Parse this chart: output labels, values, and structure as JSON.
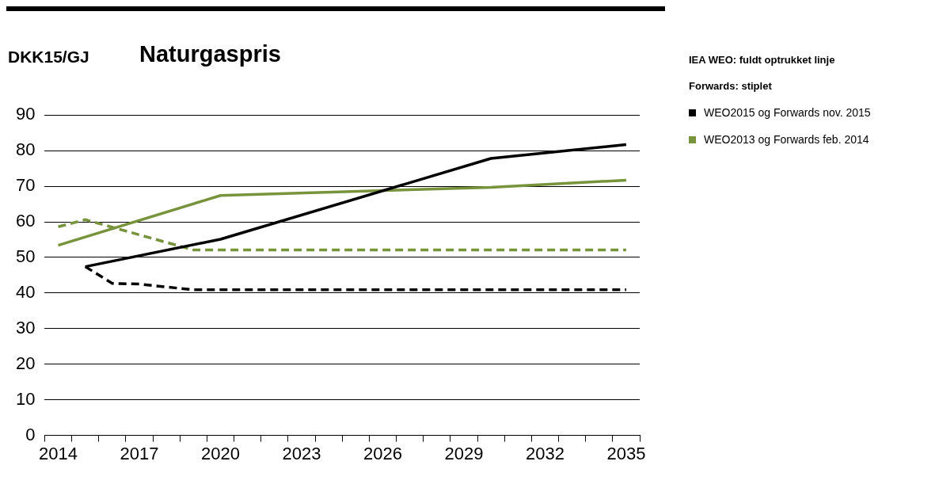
{
  "chart_data": {
    "type": "line",
    "title": "Naturgaspris",
    "ylabel": "DKK15/GJ",
    "categories": [
      "2014",
      null,
      null,
      "2017",
      null,
      null,
      "2020",
      null,
      null,
      "2023",
      null,
      null,
      "2026",
      null,
      null,
      "2029",
      null,
      null,
      "2032",
      null,
      null,
      "2035"
    ],
    "series": [
      {
        "name": "WEO2015 og Forwards nov. 2015",
        "color": "#000000",
        "line_style": "solid",
        "values": [
          null,
          47.4,
          null,
          null,
          null,
          null,
          55.1,
          null,
          null,
          null,
          null,
          null,
          null,
          null,
          null,
          null,
          77.8,
          null,
          null,
          null,
          null,
          81.7
        ]
      },
      {
        "color": "#000000",
        "line_style": "dashed",
        "values": [
          null,
          47.4,
          42.7,
          42.5,
          null,
          40.9,
          40.9,
          40.9,
          40.9,
          40.9,
          40.9,
          40.9,
          40.9,
          40.9,
          40.9,
          40.9,
          40.9,
          40.9,
          40.9,
          40.9,
          40.9,
          40.9
        ]
      },
      {
        "name": "WEO2013 og Forwards feb. 2014",
        "color": "#77933c",
        "line_style": "solid",
        "values": [
          53.4,
          null,
          null,
          null,
          null,
          null,
          67.4,
          null,
          null,
          null,
          null,
          null,
          null,
          null,
          null,
          null,
          69.7,
          null,
          null,
          null,
          null,
          71.7
        ]
      },
      {
        "color": "#77933c",
        "line_style": "dashed",
        "values": [
          58.6,
          60.6,
          null,
          null,
          null,
          52.1,
          52.1,
          52.1,
          52.1,
          52.1,
          52.1,
          52.1,
          52.1,
          52.1,
          52.1,
          52.1,
          52.1,
          52.1,
          52.1,
          52.1,
          52.1,
          52.1
        ]
      }
    ],
    "ylim": [
      0,
      90
    ],
    "yticks": [
      0,
      10,
      20,
      30,
      40,
      50,
      60,
      70,
      80,
      90
    ],
    "grid": "y",
    "legend": "right",
    "marker": "none",
    "annotations": [
      "IEA WEO: fuldt optrukket linje",
      "Forwards: stiplet"
    ]
  }
}
